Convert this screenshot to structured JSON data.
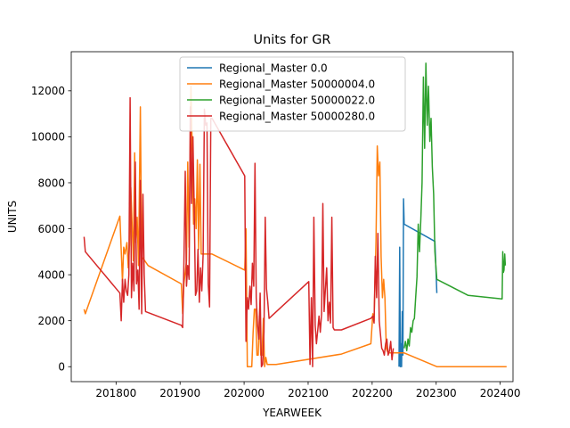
{
  "chart_data": {
    "type": "line",
    "title": "Units for GR",
    "xlabel": "YEARWEEK",
    "ylabel": "UNITS",
    "xlim": [
      201730,
      202420
    ],
    "ylim": [
      -650,
      13700
    ],
    "xticks": [
      201800,
      201900,
      202000,
      202100,
      202200,
      202300,
      202400
    ],
    "xtick_labels": [
      "201800",
      "201900",
      "202000",
      "202100",
      "202200",
      "202300",
      "202400"
    ],
    "yticks": [
      0,
      2000,
      4000,
      6000,
      8000,
      10000,
      12000
    ],
    "ytick_labels": [
      "0",
      "2000",
      "4000",
      "6000",
      "8000",
      "10000",
      "12000"
    ],
    "grid": false,
    "legend_position": "upper-center",
    "series": [
      {
        "name": "Regional_Master 0.0",
        "color": "#1f77b4",
        "points": [
          [
            202242,
            0
          ],
          [
            202243,
            5200
          ],
          [
            202244,
            0
          ],
          [
            202245,
            1000
          ],
          [
            202246,
            0
          ],
          [
            202247,
            2400
          ],
          [
            202248,
            500
          ],
          [
            202249,
            7300
          ],
          [
            202250,
            6200
          ],
          [
            202298,
            5450
          ],
          [
            202301,
            3200
          ]
        ]
      },
      {
        "name": "Regional_Master 50000004.0",
        "color": "#ff7f0e",
        "points": [
          [
            201750,
            2500
          ],
          [
            201752,
            2300
          ],
          [
            201806,
            6550
          ],
          [
            201810,
            3700
          ],
          [
            201812,
            5200
          ],
          [
            201814,
            4900
          ],
          [
            201817,
            5400
          ],
          [
            201819,
            4300
          ],
          [
            201821,
            5300
          ],
          [
            201823,
            7800
          ],
          [
            201827,
            4600
          ],
          [
            201829,
            9300
          ],
          [
            201831,
            5400
          ],
          [
            201833,
            6500
          ],
          [
            201835,
            4400
          ],
          [
            201838,
            11300
          ],
          [
            201840,
            4800
          ],
          [
            201850,
            4400
          ],
          [
            201902,
            3600
          ],
          [
            201904,
            2300
          ],
          [
            201906,
            3600
          ],
          [
            201910,
            4600
          ],
          [
            201912,
            8900
          ],
          [
            201914,
            5200
          ],
          [
            201917,
            12200
          ],
          [
            201919,
            9200
          ],
          [
            201921,
            6200
          ],
          [
            201923,
            7300
          ],
          [
            201925,
            6000
          ],
          [
            201927,
            9000
          ],
          [
            201929,
            5100
          ],
          [
            201931,
            8800
          ],
          [
            201933,
            4900
          ],
          [
            201950,
            4900
          ],
          [
            202001,
            4200
          ],
          [
            202003,
            6000
          ],
          [
            202005,
            0
          ],
          [
            202009,
            0
          ],
          [
            202012,
            0
          ],
          [
            202014,
            1500
          ],
          [
            202016,
            2500
          ],
          [
            202018,
            2500
          ],
          [
            202020,
            500
          ],
          [
            202022,
            500
          ],
          [
            202024,
            2200
          ],
          [
            202026,
            500
          ],
          [
            202028,
            500
          ],
          [
            202030,
            2100
          ],
          [
            202032,
            0
          ],
          [
            202034,
            400
          ],
          [
            202036,
            100
          ],
          [
            202040,
            100
          ],
          [
            202050,
            100
          ],
          [
            202152,
            550
          ],
          [
            202198,
            1000
          ],
          [
            202201,
            2300
          ],
          [
            202203,
            2000
          ],
          [
            202206,
            5500
          ],
          [
            202208,
            9600
          ],
          [
            202210,
            8300
          ],
          [
            202212,
            8900
          ],
          [
            202214,
            4800
          ],
          [
            202216,
            3000
          ],
          [
            202218,
            3800
          ],
          [
            202220,
            3000
          ],
          [
            202222,
            800
          ],
          [
            202224,
            650
          ],
          [
            202226,
            600
          ],
          [
            202228,
            600
          ],
          [
            202230,
            600
          ],
          [
            202232,
            600
          ],
          [
            202234,
            600
          ],
          [
            202236,
            600
          ],
          [
            202238,
            600
          ],
          [
            202240,
            600
          ],
          [
            202242,
            600
          ],
          [
            202244,
            600
          ],
          [
            202246,
            600
          ],
          [
            202248,
            600
          ],
          [
            202250,
            600
          ],
          [
            202301,
            0
          ],
          [
            202350,
            0
          ],
          [
            202410,
            0
          ]
        ]
      },
      {
        "name": "Regional_Master 50000022.0",
        "color": "#2ca02c",
        "points": [
          [
            202250,
            800
          ],
          [
            202252,
            1100
          ],
          [
            202254,
            700
          ],
          [
            202256,
            1200
          ],
          [
            202258,
            900
          ],
          [
            202260,
            1700
          ],
          [
            202262,
            1500
          ],
          [
            202264,
            2000
          ],
          [
            202266,
            2100
          ],
          [
            202268,
            3000
          ],
          [
            202270,
            3900
          ],
          [
            202272,
            6200
          ],
          [
            202274,
            5000
          ],
          [
            202276,
            6400
          ],
          [
            202278,
            8000
          ],
          [
            202280,
            12600
          ],
          [
            202282,
            9500
          ],
          [
            202284,
            13200
          ],
          [
            202286,
            10500
          ],
          [
            202288,
            12200
          ],
          [
            202290,
            9800
          ],
          [
            202292,
            10800
          ],
          [
            202294,
            8700
          ],
          [
            202296,
            7500
          ],
          [
            202298,
            5000
          ],
          [
            202300,
            4200
          ],
          [
            202301,
            3800
          ],
          [
            202350,
            3100
          ],
          [
            202403,
            2950
          ],
          [
            202404,
            5000
          ],
          [
            202405,
            4100
          ],
          [
            202406,
            4200
          ],
          [
            202407,
            4900
          ],
          [
            202408,
            4400
          ]
        ]
      },
      {
        "name": "Regional_Master 50000280.0",
        "color": "#d62728",
        "points": [
          [
            201750,
            5650
          ],
          [
            201752,
            5000
          ],
          [
            201806,
            3200
          ],
          [
            201808,
            2000
          ],
          [
            201810,
            3800
          ],
          [
            201812,
            2800
          ],
          [
            201814,
            3800
          ],
          [
            201816,
            3300
          ],
          [
            201818,
            3100
          ],
          [
            201820,
            4000
          ],
          [
            201822,
            11700
          ],
          [
            201824,
            3000
          ],
          [
            201826,
            4500
          ],
          [
            201828,
            3300
          ],
          [
            201830,
            8900
          ],
          [
            201832,
            3600
          ],
          [
            201834,
            4200
          ],
          [
            201836,
            2500
          ],
          [
            201838,
            8100
          ],
          [
            201840,
            2300
          ],
          [
            201842,
            7500
          ],
          [
            201844,
            4000
          ],
          [
            201846,
            2400
          ],
          [
            201902,
            1800
          ],
          [
            201904,
            1700
          ],
          [
            201906,
            4500
          ],
          [
            201908,
            8500
          ],
          [
            201910,
            3500
          ],
          [
            201912,
            4400
          ],
          [
            201914,
            3800
          ],
          [
            201916,
            11300
          ],
          [
            201918,
            7100
          ],
          [
            201920,
            10000
          ],
          [
            201922,
            7000
          ],
          [
            201924,
            3100
          ],
          [
            201926,
            3300
          ],
          [
            201928,
            5100
          ],
          [
            201930,
            2800
          ],
          [
            201932,
            4300
          ],
          [
            201934,
            3300
          ],
          [
            201936,
            4900
          ],
          [
            201938,
            11200
          ],
          [
            201940,
            10500
          ],
          [
            201942,
            10600
          ],
          [
            201944,
            3600
          ],
          [
            201946,
            2600
          ],
          [
            201948,
            10800
          ],
          [
            201950,
            10800
          ],
          [
            202001,
            8300
          ],
          [
            202003,
            1100
          ],
          [
            202005,
            3000
          ],
          [
            202007,
            2500
          ],
          [
            202009,
            3500
          ],
          [
            202011,
            2700
          ],
          [
            202013,
            4500
          ],
          [
            202015,
            3500
          ],
          [
            202017,
            8850
          ],
          [
            202019,
            3000
          ],
          [
            202021,
            1800
          ],
          [
            202023,
            1200
          ],
          [
            202025,
            3200
          ],
          [
            202027,
            0
          ],
          [
            202029,
            100
          ],
          [
            202031,
            1500
          ],
          [
            202033,
            6500
          ],
          [
            202035,
            3400
          ],
          [
            202037,
            2800
          ],
          [
            202039,
            2100
          ],
          [
            202101,
            3700
          ],
          [
            202103,
            100
          ],
          [
            202105,
            3000
          ],
          [
            202107,
            0
          ],
          [
            202109,
            6500
          ],
          [
            202111,
            1800
          ],
          [
            202113,
            1000
          ],
          [
            202115,
            1600
          ],
          [
            202117,
            2200
          ],
          [
            202119,
            1500
          ],
          [
            202121,
            2300
          ],
          [
            202123,
            7100
          ],
          [
            202125,
            2400
          ],
          [
            202127,
            3400
          ],
          [
            202129,
            4300
          ],
          [
            202131,
            2000
          ],
          [
            202133,
            2800
          ],
          [
            202135,
            1900
          ],
          [
            202137,
            6500
          ],
          [
            202139,
            1700
          ],
          [
            202141,
            1600
          ],
          [
            202152,
            1600
          ],
          [
            202198,
            2100
          ],
          [
            202201,
            2200
          ],
          [
            202203,
            1900
          ],
          [
            202205,
            4800
          ],
          [
            202207,
            3000
          ],
          [
            202209,
            5800
          ],
          [
            202211,
            2000
          ],
          [
            202213,
            1400
          ],
          [
            202215,
            800
          ],
          [
            202217,
            700
          ],
          [
            202219,
            500
          ],
          [
            202221,
            1000
          ],
          [
            202223,
            1200
          ],
          [
            202225,
            500
          ],
          [
            202227,
            700
          ],
          [
            202229,
            1100
          ],
          [
            202231,
            300
          ],
          [
            202233,
            800
          ]
        ]
      }
    ]
  }
}
